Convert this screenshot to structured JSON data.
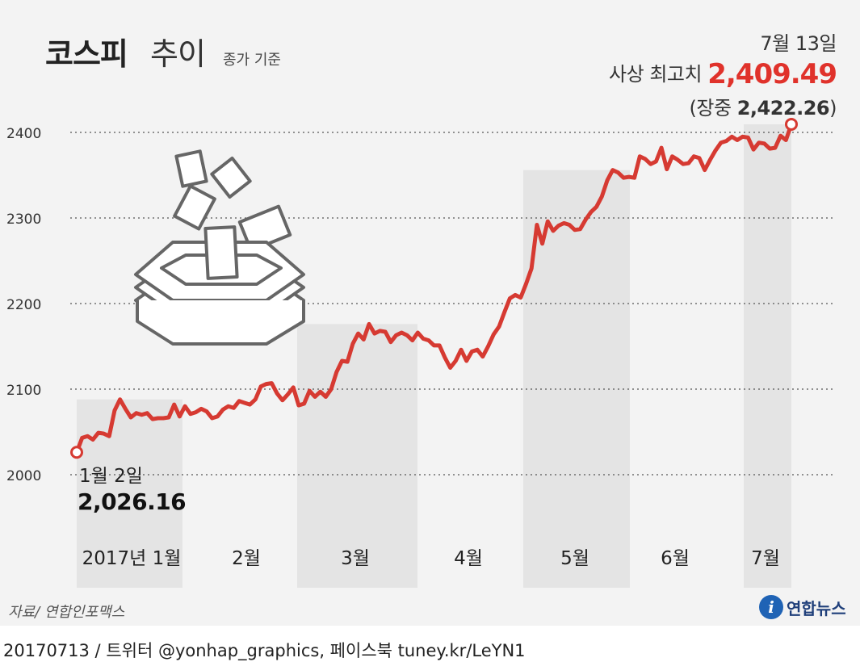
{
  "header": {
    "title_main": "코스피",
    "title_sub": "추이",
    "title_note": "종가 기준"
  },
  "annotation_high": {
    "date": "7월 13일",
    "label": "사상 최고치",
    "value": "2,409.49",
    "intraday_prefix": "(장중",
    "intraday_value": "2,422.26",
    "intraday_suffix": ")"
  },
  "annotation_start": {
    "date": "1월 2일",
    "value": "2,026.16"
  },
  "source": "자료/ 연합인포맥스",
  "footer": "20170713 / 트위터 @yonhap_graphics, 페이스북 tuney.kr/LeYN1",
  "logo": {
    "icon": "yonhap-logo-icon",
    "text": "연합뉴스"
  },
  "colors": {
    "line": "#d63a32",
    "highlight": "#e0322b",
    "band": "#e4e4e4",
    "background": "#f3f3f3",
    "grid": "#555555"
  },
  "illustration": {
    "icon": "ballot-box-icon"
  },
  "chart_data": {
    "type": "line",
    "title": "코스피 추이",
    "subtitle": "종가 기준",
    "ylim": [
      2000,
      2420
    ],
    "yticks": [
      2000,
      2100,
      2200,
      2300,
      2400
    ],
    "grid": true,
    "month_labels": [
      "2017년 1월",
      "2월",
      "3월",
      "4월",
      "5월",
      "6월",
      "7월"
    ],
    "series": [
      {
        "values": [
          2026.16,
          2043,
          2045,
          2041,
          2049,
          2048,
          2045,
          2075,
          2088,
          2077,
          2067,
          2072,
          2070,
          2072,
          2065,
          2066,
          2066,
          2067,
          2082,
          2068,
          2080,
          2071,
          2073,
          2077,
          2074,
          2066,
          2068,
          2076,
          2080,
          2078,
          2086,
          2084,
          2082,
          2088,
          2103,
          2106,
          2107,
          2095,
          2087,
          2094,
          2102,
          2081,
          2083,
          2098,
          2091,
          2097,
          2091,
          2100,
          2120,
          2133,
          2132,
          2153,
          2165,
          2158,
          2176,
          2165,
          2168,
          2167,
          2155,
          2163,
          2166,
          2163,
          2157,
          2166,
          2159,
          2157,
          2151,
          2151,
          2137,
          2125,
          2133,
          2146,
          2133,
          2144,
          2146,
          2138,
          2150,
          2164,
          2173,
          2190,
          2206,
          2210,
          2207,
          2223,
          2241,
          2292,
          2270,
          2296,
          2285,
          2291,
          2294,
          2292,
          2286,
          2287,
          2298,
          2307,
          2313,
          2325,
          2344,
          2356,
          2353,
          2347,
          2348,
          2347,
          2372,
          2369,
          2363,
          2366,
          2382,
          2357,
          2372,
          2368,
          2363,
          2364,
          2372,
          2370,
          2356,
          2368,
          2379,
          2388,
          2390,
          2395,
          2391,
          2395,
          2394,
          2380,
          2388,
          2387,
          2381,
          2382,
          2396,
          2391,
          2409.49
        ]
      }
    ]
  }
}
